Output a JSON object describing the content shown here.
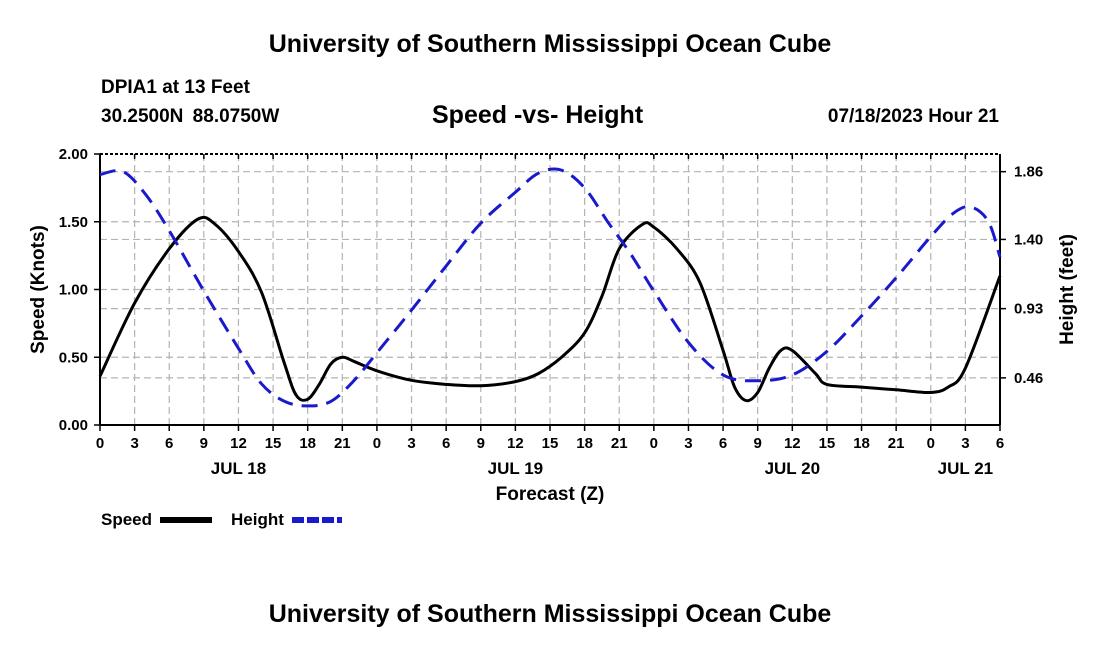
{
  "header": {
    "title": "University of Southern Mississippi Ocean Cube",
    "station": "DPIA1 at 13 Feet",
    "coordinates": "30.2500N  88.0750W",
    "chart_title": "Speed -vs- Height",
    "timestamp": "07/18/2023 Hour 21"
  },
  "footer": {
    "title": "University of Southern Mississippi Ocean Cube"
  },
  "colors": {
    "speed": "#000000",
    "height": "#1a1acc",
    "grid": "#b4b4b4"
  },
  "chart_data": {
    "type": "line",
    "title": "Speed -vs- Height",
    "xlabel": "Forecast (Z)",
    "ylabel": "Speed (Knots)",
    "y2label": "Height (feet)",
    "x_unit": "hours since 2023-07-18 00Z",
    "xlim": [
      0,
      78
    ],
    "ylim": [
      0,
      2
    ],
    "y2lim": [
      0.14,
      1.98
    ],
    "x_ticks": [
      0,
      3,
      6,
      9,
      12,
      15,
      18,
      21,
      24,
      27,
      30,
      33,
      36,
      39,
      42,
      45,
      48,
      51,
      54,
      57,
      60,
      63,
      66,
      69,
      72,
      75,
      78
    ],
    "x_tick_labels": [
      "0",
      "3",
      "6",
      "9",
      "12",
      "15",
      "18",
      "21",
      "0",
      "3",
      "6",
      "9",
      "12",
      "15",
      "18",
      "21",
      "0",
      "3",
      "6",
      "9",
      "12",
      "15",
      "18",
      "21",
      "0",
      "3",
      "6"
    ],
    "y_ticks": [
      0,
      0.5,
      1,
      1.5,
      2
    ],
    "y_tick_labels": [
      "0.00",
      "0.50",
      "1.00",
      "1.50",
      "2.00"
    ],
    "y2_ticks": [
      0.46,
      0.93,
      1.4,
      1.86
    ],
    "y2_tick_labels": [
      "0.46",
      "0.93",
      "1.40",
      "1.86"
    ],
    "day_labels": [
      {
        "x": 12,
        "label": "JUL 18"
      },
      {
        "x": 36,
        "label": "JUL 19"
      },
      {
        "x": 60,
        "label": "JUL 20"
      },
      {
        "x": 75,
        "label": "JUL 21"
      }
    ],
    "legend": [
      {
        "name": "Speed",
        "style": "solid"
      },
      {
        "name": "Height",
        "style": "dashed"
      }
    ],
    "series": [
      {
        "name": "Speed",
        "axis": "left",
        "style": "solid",
        "points": [
          [
            0,
            0.36
          ],
          [
            3,
            0.9
          ],
          [
            6,
            1.3
          ],
          [
            8.5,
            1.52
          ],
          [
            10,
            1.48
          ],
          [
            12,
            1.28
          ],
          [
            14,
            0.98
          ],
          [
            16,
            0.45
          ],
          [
            17,
            0.22
          ],
          [
            18,
            0.19
          ],
          [
            19,
            0.3
          ],
          [
            20,
            0.45
          ],
          [
            21,
            0.5
          ],
          [
            22,
            0.47
          ],
          [
            24,
            0.4
          ],
          [
            27,
            0.33
          ],
          [
            30,
            0.3
          ],
          [
            33,
            0.29
          ],
          [
            36,
            0.32
          ],
          [
            38,
            0.38
          ],
          [
            40,
            0.5
          ],
          [
            42,
            0.68
          ],
          [
            43.5,
            0.95
          ],
          [
            45,
            1.3
          ],
          [
            47,
            1.48
          ],
          [
            48,
            1.46
          ],
          [
            50,
            1.3
          ],
          [
            52,
            1.05
          ],
          [
            54,
            0.55
          ],
          [
            55,
            0.28
          ],
          [
            56,
            0.18
          ],
          [
            57,
            0.24
          ],
          [
            58,
            0.42
          ],
          [
            59,
            0.55
          ],
          [
            60,
            0.55
          ],
          [
            62,
            0.38
          ],
          [
            63,
            0.3
          ],
          [
            66,
            0.28
          ],
          [
            69,
            0.26
          ],
          [
            72,
            0.24
          ],
          [
            73.5,
            0.28
          ],
          [
            75,
            0.42
          ],
          [
            78,
            1.1
          ]
        ]
      },
      {
        "name": "Height",
        "axis": "right",
        "style": "dashed",
        "points": [
          [
            0,
            1.84
          ],
          [
            2,
            1.86
          ],
          [
            4,
            1.7
          ],
          [
            6,
            1.46
          ],
          [
            9,
            1.05
          ],
          [
            12,
            0.66
          ],
          [
            14,
            0.42
          ],
          [
            16,
            0.3
          ],
          [
            18,
            0.27
          ],
          [
            20,
            0.3
          ],
          [
            22,
            0.44
          ],
          [
            24,
            0.63
          ],
          [
            27,
            0.92
          ],
          [
            30,
            1.22
          ],
          [
            33,
            1.51
          ],
          [
            36,
            1.72
          ],
          [
            38,
            1.85
          ],
          [
            40,
            1.87
          ],
          [
            42,
            1.75
          ],
          [
            44,
            1.52
          ],
          [
            46,
            1.3
          ],
          [
            48,
            1.05
          ],
          [
            51,
            0.7
          ],
          [
            54,
            0.48
          ],
          [
            57,
            0.44
          ],
          [
            60,
            0.48
          ],
          [
            63,
            0.64
          ],
          [
            66,
            0.88
          ],
          [
            69,
            1.14
          ],
          [
            72,
            1.42
          ],
          [
            74,
            1.58
          ],
          [
            75.5,
            1.62
          ],
          [
            77,
            1.52
          ],
          [
            78,
            1.28
          ]
        ]
      }
    ]
  }
}
